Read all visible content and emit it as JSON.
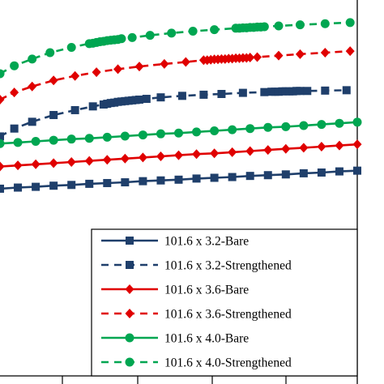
{
  "chart_data": {
    "type": "line",
    "title": "",
    "xlabel": "",
    "ylabel": "",
    "xlim": [
      0,
      100
    ],
    "ylim": [
      0,
      100
    ],
    "grid": false,
    "legend_placement": "bottom-right",
    "series": [
      {
        "name": "101.6 x 3.2-Bare",
        "color": "#1f3f6b",
        "dashed": false,
        "marker": "square",
        "x": [
          0,
          5,
          10,
          15,
          20,
          25,
          30,
          35,
          40,
          45,
          50,
          55,
          60,
          65,
          70,
          75,
          80,
          85,
          90,
          95,
          100
        ],
        "y": [
          49.8,
          50.1,
          50.3,
          50.6,
          50.8,
          51.1,
          51.3,
          51.5,
          51.8,
          52.0,
          52.2,
          52.5,
          52.7,
          52.9,
          53.2,
          53.4,
          53.6,
          53.9,
          54.1,
          54.4,
          54.6
        ]
      },
      {
        "name": "101.6 x 3.2-Strengthened",
        "color": "#1f3f6b",
        "dashed": true,
        "marker": "square",
        "x": [
          0,
          4,
          9,
          15,
          21,
          26,
          29,
          30,
          31,
          32,
          33,
          34,
          35,
          36,
          37,
          38,
          39,
          41,
          45,
          51,
          57,
          62,
          68,
          74,
          76,
          77,
          78,
          79,
          80,
          81,
          82,
          83,
          84,
          86,
          91,
          97
        ],
        "y": [
          63.7,
          65.8,
          67.6,
          69.4,
          70.7,
          71.7,
          72.2,
          72.4,
          72.6,
          72.7,
          72.9,
          73.0,
          73.1,
          73.2,
          73.3,
          73.4,
          73.5,
          73.7,
          74.1,
          74.5,
          74.8,
          75.0,
          75.3,
          75.5,
          75.6,
          75.6,
          75.6,
          75.7,
          75.7,
          75.7,
          75.7,
          75.8,
          75.8,
          75.8,
          75.9,
          76.0
        ]
      },
      {
        "name": "101.6 x 3.6-Bare",
        "color": "#e00000",
        "dashed": false,
        "marker": "diamond",
        "x": [
          0,
          5,
          10,
          15,
          20,
          25,
          30,
          35,
          40,
          45,
          50,
          55,
          60,
          65,
          70,
          75,
          80,
          85,
          90,
          95,
          100
        ],
        "y": [
          55.7,
          56.0,
          56.3,
          56.6,
          56.9,
          57.2,
          57.5,
          57.8,
          58.1,
          58.4,
          58.7,
          59.0,
          59.2,
          59.5,
          59.8,
          60.1,
          60.4,
          60.7,
          61.0,
          61.3,
          61.6
        ]
      },
      {
        "name": "101.6 x 3.6-Strengthened",
        "color": "#e00000",
        "dashed": true,
        "marker": "diamond",
        "x": [
          0,
          4,
          9,
          15,
          21,
          27,
          33,
          39,
          46,
          52,
          57,
          58,
          59,
          60,
          61,
          62,
          63,
          64,
          65,
          66,
          67,
          68,
          69,
          70,
          72,
          78,
          84,
          91,
          98
        ],
        "y": [
          73.5,
          75.4,
          77.0,
          78.6,
          79.8,
          80.8,
          81.6,
          82.3,
          83.0,
          83.5,
          84.0,
          84.0,
          84.1,
          84.2,
          84.2,
          84.3,
          84.3,
          84.4,
          84.4,
          84.5,
          84.5,
          84.6,
          84.6,
          84.7,
          84.8,
          85.2,
          85.6,
          86.0,
          86.4
        ]
      },
      {
        "name": "101.6 x 4.0-Bare",
        "color": "#00a651",
        "dashed": false,
        "marker": "circle",
        "x": [
          0,
          5,
          10,
          15,
          20,
          25,
          30,
          35,
          40,
          45,
          50,
          55,
          60,
          65,
          70,
          75,
          80,
          85,
          90,
          95,
          100
        ],
        "y": [
          61.8,
          62.1,
          62.4,
          62.7,
          63.0,
          63.2,
          63.5,
          63.8,
          64.1,
          64.4,
          64.6,
          64.9,
          65.2,
          65.5,
          65.8,
          66.1,
          66.3,
          66.6,
          66.9,
          67.2,
          67.5
        ]
      },
      {
        "name": "101.6 x 4.0-Strengthened",
        "color": "#00a651",
        "dashed": true,
        "marker": "circle",
        "x": [
          0,
          4,
          9,
          14,
          20,
          25,
          26,
          27,
          28,
          29,
          30,
          31,
          32,
          33,
          34,
          37,
          42,
          48,
          54,
          60,
          66,
          67,
          68,
          69,
          70,
          71,
          72,
          73,
          74,
          78,
          84,
          91,
          98
        ],
        "y": [
          80.4,
          82.5,
          84.3,
          86.0,
          87.4,
          88.4,
          88.5,
          88.7,
          88.9,
          89.0,
          89.2,
          89.3,
          89.4,
          89.5,
          89.7,
          90.0,
          90.6,
          91.2,
          91.7,
          92.1,
          92.5,
          92.5,
          92.6,
          92.6,
          92.7,
          92.7,
          92.8,
          92.8,
          92.9,
          93.1,
          93.4,
          93.7,
          94.0
        ]
      }
    ]
  }
}
